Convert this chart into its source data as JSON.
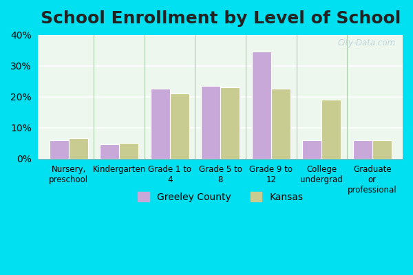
{
  "title": "School Enrollment by Level of School",
  "categories": [
    "Nursery,\npreschool",
    "Kindergarten",
    "Grade 1 to\n4",
    "Grade 5 to\n8",
    "Grade 9 to\n12",
    "College\nundergrad",
    "Graduate\nor\nprofessional"
  ],
  "greeley_values": [
    6.0,
    4.5,
    22.5,
    23.5,
    34.5,
    6.0,
    6.0
  ],
  "kansas_values": [
    6.5,
    5.0,
    21.0,
    23.0,
    22.5,
    19.0,
    6.0
  ],
  "greeley_color": "#c8a8d8",
  "kansas_color": "#c8cc90",
  "ylim": [
    0,
    40
  ],
  "yticks": [
    0,
    10,
    20,
    30,
    40
  ],
  "legend_labels": [
    "Greeley County",
    "Kansas"
  ],
  "watermark": "City-Data.com",
  "title_fontsize": 18,
  "bar_width": 0.38,
  "outer_bg_color": "#00e0f0",
  "plot_bg_color": "#edf7ee"
}
